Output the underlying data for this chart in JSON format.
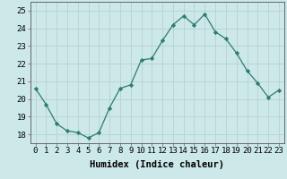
{
  "x": [
    0,
    1,
    2,
    3,
    4,
    5,
    6,
    7,
    8,
    9,
    10,
    11,
    12,
    13,
    14,
    15,
    16,
    17,
    18,
    19,
    20,
    21,
    22,
    23
  ],
  "y": [
    20.6,
    19.7,
    18.6,
    18.2,
    18.1,
    17.8,
    18.1,
    19.5,
    20.6,
    20.8,
    22.2,
    22.3,
    23.3,
    24.2,
    24.7,
    24.2,
    24.8,
    23.8,
    23.4,
    22.6,
    21.6,
    20.9,
    20.1,
    20.5
  ],
  "line_color": "#2e7d6e",
  "marker": "D",
  "marker_size": 2.2,
  "bg_color": "#cce8e8",
  "grid_color": "#b8d4d4",
  "xlabel": "Humidex (Indice chaleur)",
  "ylim": [
    17.5,
    25.5
  ],
  "xlim": [
    -0.5,
    23.5
  ],
  "yticks": [
    18,
    19,
    20,
    21,
    22,
    23,
    24,
    25
  ],
  "xticks": [
    0,
    1,
    2,
    3,
    4,
    5,
    6,
    7,
    8,
    9,
    10,
    11,
    12,
    13,
    14,
    15,
    16,
    17,
    18,
    19,
    20,
    21,
    22,
    23
  ],
  "xlabel_fontsize": 7.5,
  "tick_fontsize": 6.5
}
